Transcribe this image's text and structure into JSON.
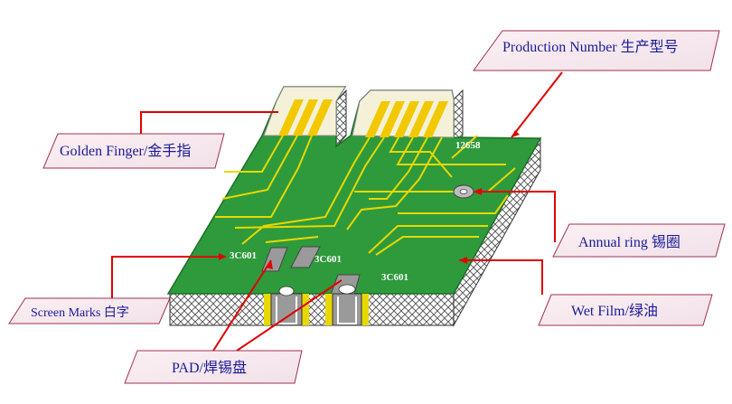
{
  "labels": {
    "production_number": "Production Number 生产型号",
    "golden_finger": "Golden Finger/金手指",
    "annual_ring": "Annual ring 锡圈",
    "screen_marks": "Screen Marks 白字",
    "wet_film": "Wet Film/绿油",
    "pad": "PAD/焊锡盘"
  },
  "board_text": {
    "part_number": "12658",
    "mark_1": "3C601",
    "mark_2": "3C601",
    "mark_3": "3C601"
  },
  "colors": {
    "board_green": "#2e9a3c",
    "board_edge": "#1e6e28",
    "trace_yellow": "#e8d800",
    "finger_gold": "#f2c800",
    "callout_line": "#e00000",
    "label_fill": "#f7e9ee",
    "label_text": "#1a1a99",
    "hatch": "#555555"
  }
}
